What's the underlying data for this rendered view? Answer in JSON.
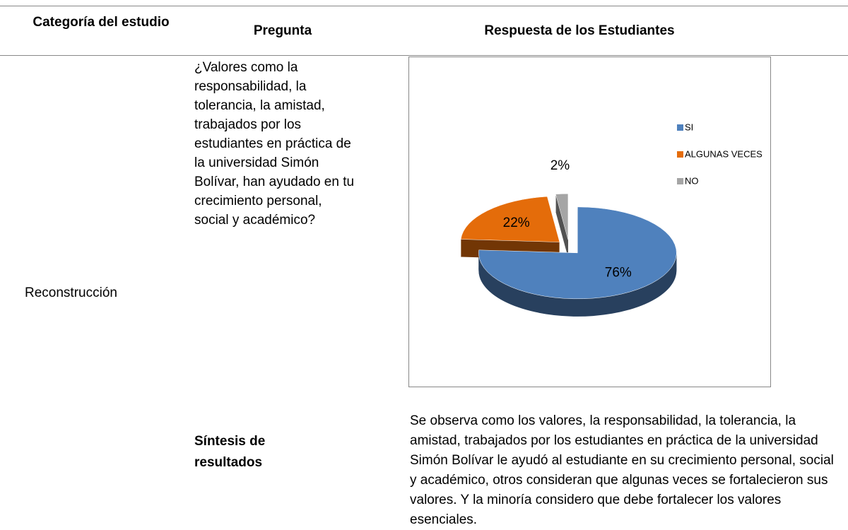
{
  "table": {
    "header": [
      "Categoría del estudio",
      "Pregunta",
      "Respuesta de los Estudiantes"
    ],
    "rows": [
      [
        "Reconstrucción",
        "¿Valores como la responsabilidad, la tolerancia, la amistad, trabajados por los estudiantes en práctica de la universidad Simón Bolívar, han ayudado en tu crecimiento personal, social y académico?"
      ],
      [
        "Síntesis de resultados",
        "Se observa como los valores, la responsabilidad, la tolerancia, la amistad, trabajados por los estudiantes en práctica de la universidad Simón Bolívar le   ayudó al estudiante en su crecimiento personal, social y académico, otros consideran que algunas veces se fortalecieron sus valores. Y la minoría considero que debe fortalecer los valores esenciales."
      ]
    ]
  },
  "chart_data": {
    "type": "pie",
    "categories": [
      "SI",
      "ALGUNAS VECES",
      "NO"
    ],
    "values": [
      76,
      22,
      2
    ],
    "value_labels": [
      "76%",
      "22%",
      "2%"
    ],
    "colors": [
      "#4f81bd",
      "#e46c0a",
      "#a5a5a5"
    ],
    "legend": "right"
  }
}
